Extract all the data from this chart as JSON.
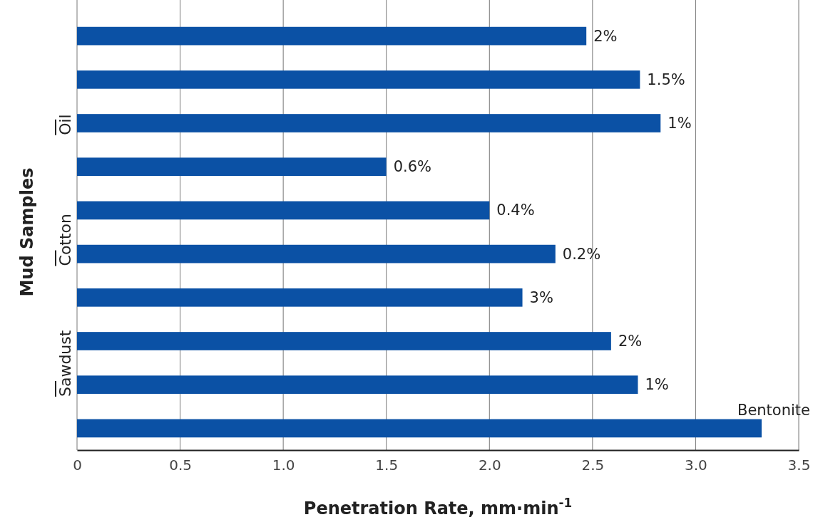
{
  "chart_data": {
    "type": "bar",
    "orientation": "horizontal",
    "categories": [
      "2%",
      "1.5%",
      "1%",
      "0.6%",
      "0.4%",
      "0.2%",
      "3%",
      "2%",
      "1%",
      "Bentonite"
    ],
    "values": [
      2.47,
      2.73,
      2.83,
      1.5,
      2.0,
      2.32,
      2.16,
      2.59,
      2.72,
      3.32
    ],
    "color": "#0b51a5",
    "xlim": [
      0,
      3.5
    ],
    "xticks": [
      0,
      0.5,
      {
        "value": 1,
        "label": "1.0"
      },
      1.5,
      {
        "value": 2,
        "label": "2.0"
      },
      2.5,
      {
        "value": 3,
        "label": "3.0"
      },
      3.5
    ],
    "grid": "x",
    "xlabel": "Penetration Rate, mm·min$^{-1}$",
    "ylabel": "Mud Samples",
    "annotations": [
      "Oil",
      "Cotton",
      "Sawdust"
    ]
  }
}
